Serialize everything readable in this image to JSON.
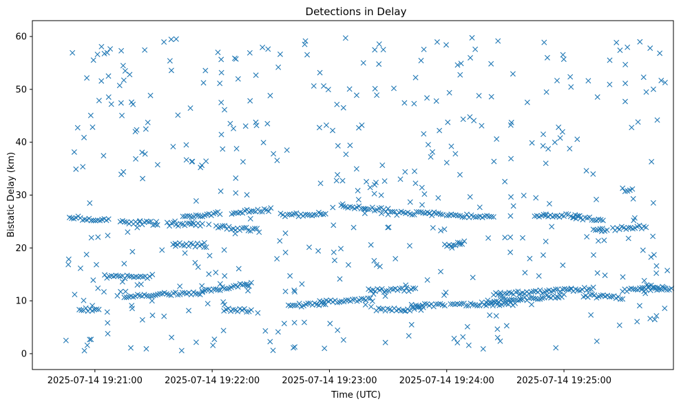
{
  "chart_data": {
    "type": "scatter",
    "title": "Detections in Delay",
    "xlabel": "Time (UTC)",
    "ylabel": "Bistatic Delay (km)",
    "x_ticks": [
      "2025-07-14 19:21:00",
      "2025-07-14 19:22:00",
      "2025-07-14 19:23:00",
      "2025-07-14 19:24:00",
      "2025-07-14 19:25:00"
    ],
    "y_ticks": [
      0,
      10,
      20,
      30,
      40,
      50,
      60
    ],
    "xlim": [
      "2025-07-14 19:20:28",
      "2025-07-14 19:25:56"
    ],
    "ylim": [
      -3,
      63
    ],
    "grid": false,
    "marker": "x",
    "color": "#1f77b4",
    "series": [
      {
        "tracks": [
          {
            "t": [
              "19:20:47",
              "19:21:07"
            ],
            "y": [
              25.8,
              25.2
            ]
          },
          {
            "t": [
              "19:20:52",
              "19:21:02"
            ],
            "y": [
              8.3,
              8.3
            ]
          },
          {
            "t": [
              "19:21:05",
              "19:21:28"
            ],
            "y": [
              14.6,
              14.6
            ]
          },
          {
            "t": [
              "19:21:13",
              "19:21:32"
            ],
            "y": [
              25.0,
              24.6
            ]
          },
          {
            "t": [
              "19:21:15",
              "19:21:55"
            ],
            "y": [
              10.9,
              11.5
            ]
          },
          {
            "t": [
              "19:21:37",
              "19:21:55"
            ],
            "y": [
              24.5,
              24.5
            ]
          },
          {
            "t": [
              "19:21:40",
              "19:21:57"
            ],
            "y": [
              20.9,
              20.4
            ]
          },
          {
            "t": [
              "19:21:45",
              "19:22:04"
            ],
            "y": [
              25.8,
              26.5
            ]
          },
          {
            "t": [
              "19:21:55",
              "19:22:20"
            ],
            "y": [
              11.8,
              13.2
            ]
          },
          {
            "t": [
              "19:22:02",
              "19:22:24"
            ],
            "y": [
              24.0,
              23.3
            ]
          },
          {
            "t": [
              "19:22:06",
              "19:22:20"
            ],
            "y": [
              8.2,
              8.2
            ]
          },
          {
            "t": [
              "19:22:10",
              "19:22:30"
            ],
            "y": [
              26.7,
              27.3
            ]
          },
          {
            "t": [
              "19:22:35",
              "19:22:58"
            ],
            "y": [
              26.2,
              26.4
            ]
          },
          {
            "t": [
              "19:22:39",
              "19:22:58"
            ],
            "y": [
              9.1,
              9.4
            ]
          },
          {
            "t": [
              "19:22:55",
              "19:23:22"
            ],
            "y": [
              9.8,
              10.2
            ]
          },
          {
            "t": [
              "19:23:06",
              "19:23:30"
            ],
            "y": [
              27.8,
              27.2
            ]
          },
          {
            "t": [
              "19:23:20",
              "19:23:44"
            ],
            "y": [
              11.9,
              12.2
            ]
          },
          {
            "t": [
              "19:23:24",
              "19:23:48"
            ],
            "y": [
              8.4,
              8.5
            ]
          },
          {
            "t": [
              "19:23:30",
              "19:23:58"
            ],
            "y": [
              26.6,
              26.4
            ]
          },
          {
            "t": [
              "19:23:42",
              "19:23:59"
            ],
            "y": [
              9.0,
              9.2
            ]
          },
          {
            "t": [
              "19:23:59",
              "19:24:09"
            ],
            "y": [
              20.5,
              21.0
            ]
          },
          {
            "t": [
              "19:24:00",
              "19:24:24"
            ],
            "y": [
              26.3,
              25.8
            ]
          },
          {
            "t": [
              "19:24:02",
              "19:24:35"
            ],
            "y": [
              9.3,
              9.5
            ]
          },
          {
            "t": [
              "19:24:21",
              "19:25:00"
            ],
            "y": [
              9.8,
              11.0
            ]
          },
          {
            "t": [
              "19:24:24",
              "19:25:15"
            ],
            "y": [
              11.2,
              12.3
            ]
          },
          {
            "t": [
              "19:24:45",
              "19:25:08"
            ],
            "y": [
              26.1,
              26.1
            ]
          },
          {
            "t": [
              "19:25:05",
              "19:25:20"
            ],
            "y": [
              25.8,
              25.2
            ]
          },
          {
            "t": [
              "19:25:10",
              "19:25:30"
            ],
            "y": [
              11.0,
              10.6
            ]
          },
          {
            "t": [
              "19:25:15",
              "19:25:22"
            ],
            "y": [
              23.3,
              23.5
            ]
          },
          {
            "t": [
              "19:25:25",
              "19:25:42"
            ],
            "y": [
              23.6,
              24.0
            ]
          },
          {
            "t": [
              "19:25:30",
              "19:25:52"
            ],
            "y": [
              12.0,
              12.3
            ]
          },
          {
            "t": [
              "19:25:40",
              "19:25:55"
            ],
            "y": [
              12.8,
              12.2
            ]
          },
          {
            "t": [
              "19:25:30",
              "19:25:35"
            ],
            "y": [
              31.0,
              31.0
            ]
          }
        ]
      }
    ]
  }
}
